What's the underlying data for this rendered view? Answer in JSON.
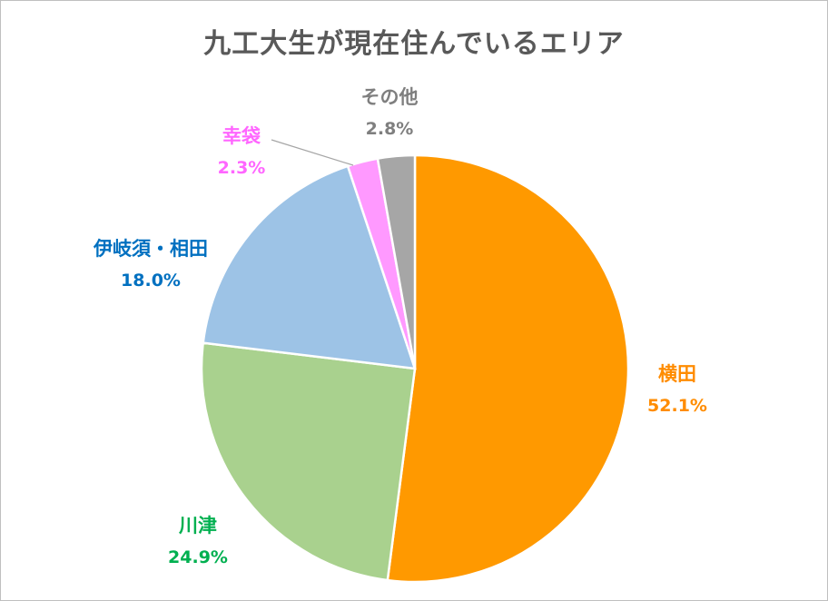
{
  "chart_data": {
    "type": "pie",
    "title": "九工大生が現在住んでいるエリア",
    "categories": [
      "横田",
      "川津",
      "伊岐須・相田",
      "幸袋",
      "その他"
    ],
    "values": [
      52.1,
      24.9,
      18.0,
      2.3,
      2.8
    ],
    "value_labels": [
      "52.1%",
      "24.9%",
      "18.0%",
      "2.3%",
      "2.8%"
    ],
    "colors": [
      "#FF9900",
      "#A9D18E",
      "#9DC3E6",
      "#FF99FF",
      "#A6A6A6"
    ],
    "label_colors": [
      "#FF8C00",
      "#00B050",
      "#0070C0",
      "#FF66FF",
      "#7F7F7F"
    ],
    "start_angle_deg": 0,
    "direction": "clockwise",
    "legend": "none"
  }
}
